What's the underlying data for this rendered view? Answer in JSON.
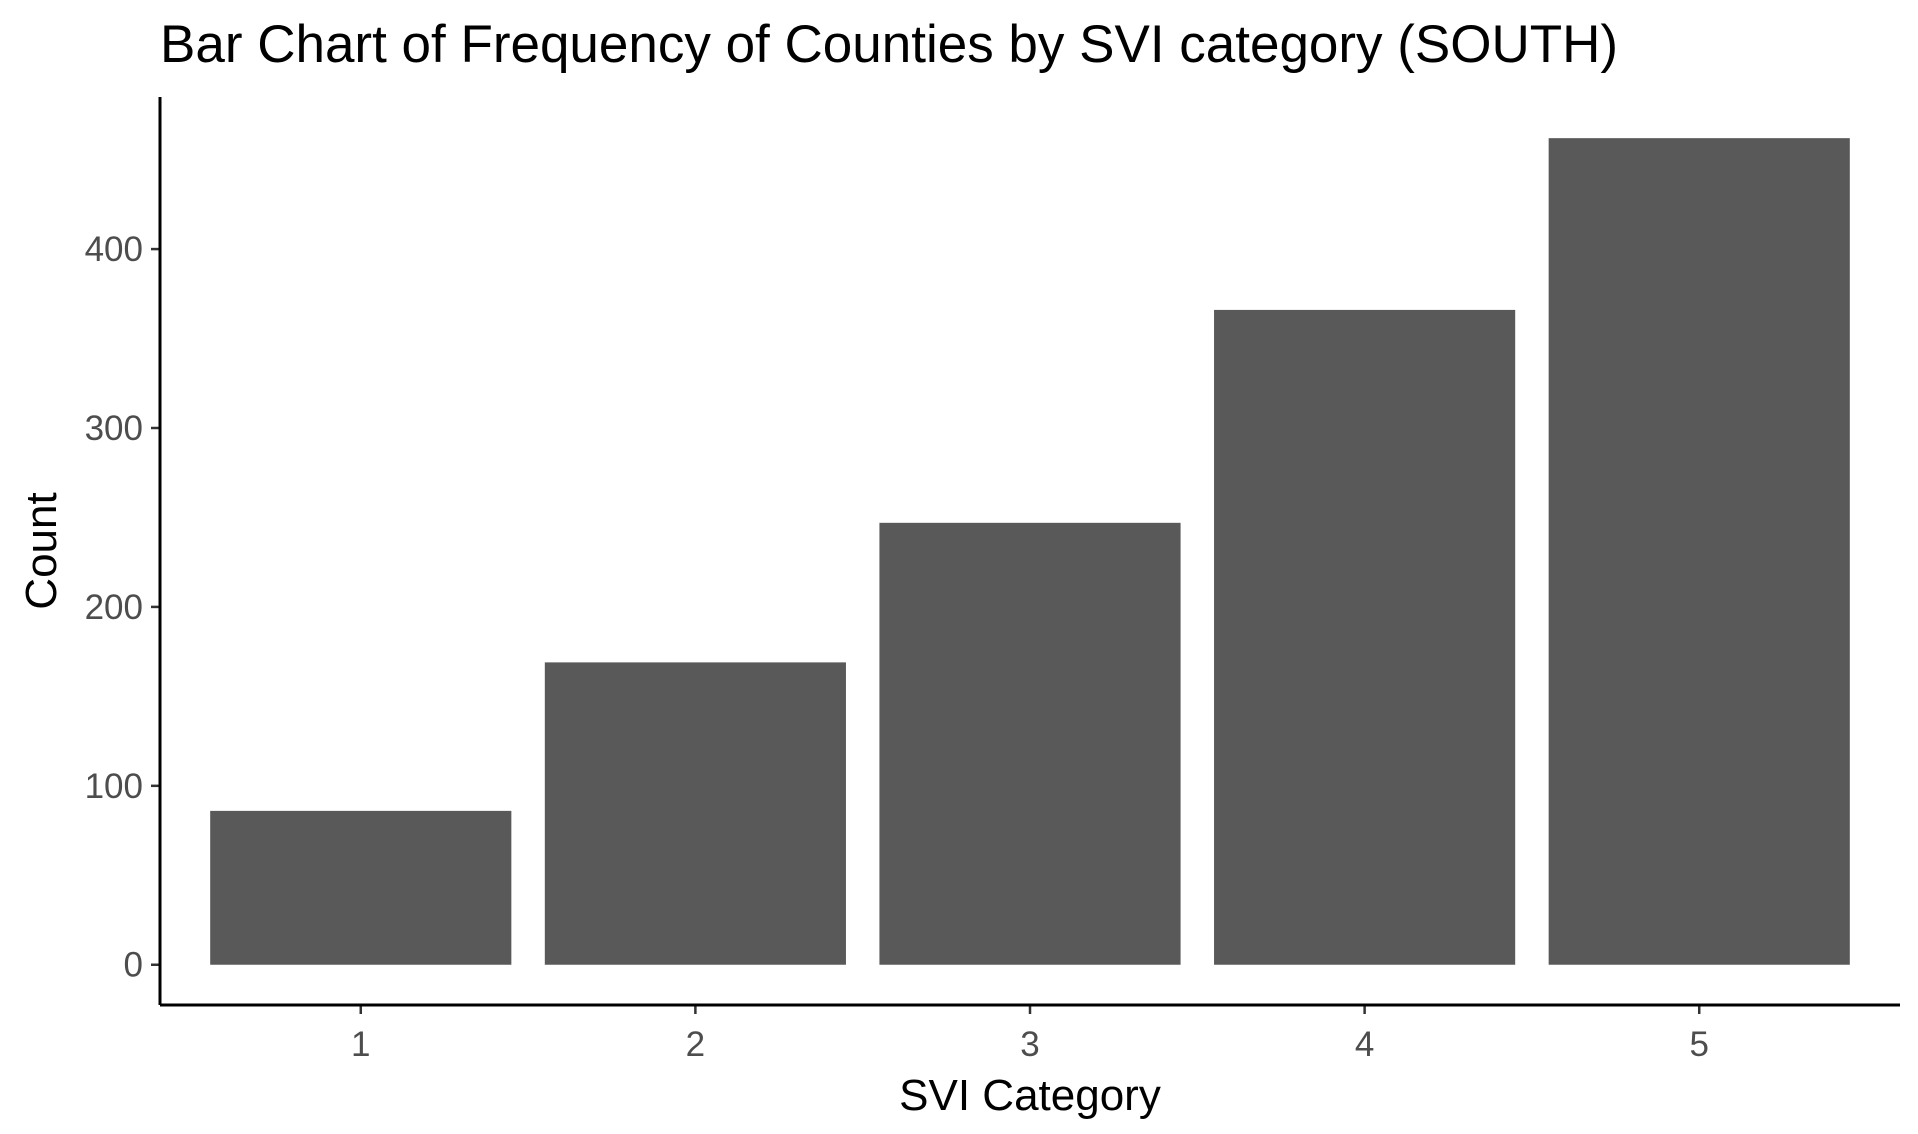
{
  "chart_data": {
    "type": "bar",
    "title": "Bar Chart of Frequency of Counties by SVI category (SOUTH)",
    "xlabel": "SVI Category",
    "ylabel": "Count",
    "categories": [
      "1",
      "2",
      "3",
      "4",
      "5"
    ],
    "values": [
      86,
      169,
      247,
      366,
      462
    ],
    "ylim": [
      -22.5,
      485
    ],
    "yticks": [
      0,
      100,
      200,
      300,
      400
    ],
    "bar_color": "#595959",
    "grid": false,
    "legend": false
  }
}
